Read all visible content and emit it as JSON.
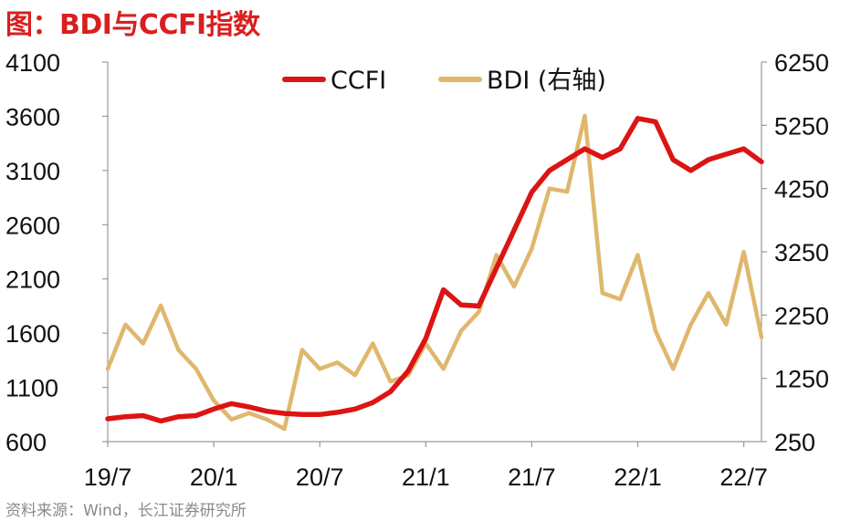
{
  "title": "图：BDI与CCFI指数",
  "source": "资料来源：Wind，长江证券研究所",
  "colors": {
    "ccfi": "#dc1414",
    "bdi": "#dfb76d",
    "axis": "#999999"
  },
  "chart_data": {
    "type": "line",
    "title": "图：BDI与CCFI指数",
    "x_ticks": [
      "19/7",
      "20/1",
      "20/7",
      "21/1",
      "21/7",
      "22/1",
      "22/7"
    ],
    "x_range": [
      "2019-07",
      "2022-08"
    ],
    "left_axis": {
      "ylim": [
        600,
        4100
      ],
      "ticks": [
        "4100",
        "3600",
        "3100",
        "2600",
        "2100",
        "1600",
        "1100",
        "600"
      ]
    },
    "right_axis": {
      "ylim": [
        250,
        6250
      ],
      "ticks": [
        "6250",
        "5250",
        "4250",
        "3250",
        "2250",
        "1250",
        "250"
      ]
    },
    "legend": {
      "position": "top-center",
      "entries": [
        "CCFI",
        "BDI (右轴)"
      ]
    },
    "series": [
      {
        "name": "CCFI",
        "axis": "left",
        "x": [
          "2019-07",
          "2019-08",
          "2019-09",
          "2019-10",
          "2019-11",
          "2019-12",
          "2020-01",
          "2020-02",
          "2020-03",
          "2020-04",
          "2020-05",
          "2020-06",
          "2020-07",
          "2020-08",
          "2020-09",
          "2020-10",
          "2020-11",
          "2020-12",
          "2021-01",
          "2021-02",
          "2021-03",
          "2021-04",
          "2021-05",
          "2021-06",
          "2021-07",
          "2021-08",
          "2021-09",
          "2021-10",
          "2021-11",
          "2021-12",
          "2022-01",
          "2022-02",
          "2022-03",
          "2022-04",
          "2022-05",
          "2022-06",
          "2022-07",
          "2022-08"
        ],
        "values": [
          810,
          830,
          840,
          790,
          830,
          840,
          900,
          950,
          920,
          880,
          860,
          850,
          850,
          870,
          900,
          960,
          1060,
          1250,
          1550,
          2000,
          1860,
          1850,
          2200,
          2550,
          2900,
          3100,
          3200,
          3300,
          3220,
          3300,
          3580,
          3550,
          3200,
          3100,
          3200,
          3250,
          3300,
          3180
        ]
      },
      {
        "name": "BDI (右轴)",
        "axis": "right",
        "x": [
          "2019-07",
          "2019-08",
          "2019-09",
          "2019-10",
          "2019-11",
          "2019-12",
          "2020-01",
          "2020-02",
          "2020-03",
          "2020-04",
          "2020-05",
          "2020-06",
          "2020-07",
          "2020-08",
          "2020-09",
          "2020-10",
          "2020-11",
          "2020-12",
          "2021-01",
          "2021-02",
          "2021-03",
          "2021-04",
          "2021-05",
          "2021-06",
          "2021-07",
          "2021-08",
          "2021-09",
          "2021-10",
          "2021-11",
          "2021-12",
          "2022-01",
          "2022-02",
          "2022-03",
          "2022-04",
          "2022-05",
          "2022-06",
          "2022-07",
          "2022-08"
        ],
        "values": [
          1400,
          2100,
          1800,
          2400,
          1700,
          1400,
          900,
          600,
          700,
          600,
          450,
          1700,
          1400,
          1500,
          1300,
          1800,
          1200,
          1300,
          1800,
          1400,
          2000,
          2300,
          3200,
          2700,
          3300,
          4250,
          4200,
          5400,
          2600,
          2500,
          3200,
          2000,
          1400,
          2100,
          2600,
          2100,
          3250,
          1900
        ]
      }
    ]
  }
}
